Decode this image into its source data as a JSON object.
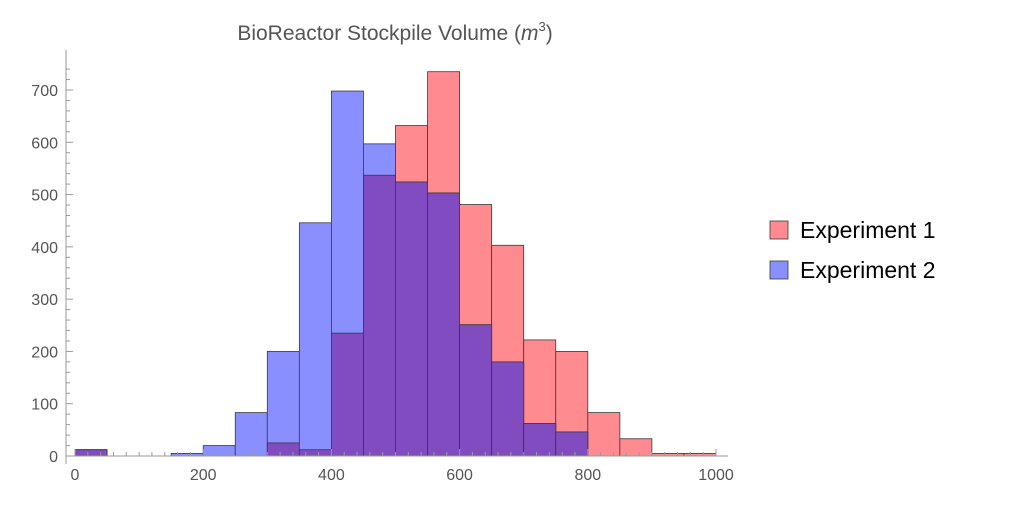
{
  "chart_data": {
    "type": "bar",
    "subtype": "histogram",
    "title": "BioReactor Stockpile Volume (m³)",
    "title_main": "BioReactor Stockpile Volume (",
    "title_m": "m",
    "title_sup": "3",
    "title_close": ")",
    "xlim": [
      0,
      1000
    ],
    "ylim": [
      0,
      750
    ],
    "x_ticks": [
      0,
      200,
      400,
      600,
      800,
      1000
    ],
    "y_ticks": [
      0,
      100,
      200,
      300,
      400,
      500,
      600,
      700
    ],
    "x_tick_labels": [
      "0",
      "200",
      "400",
      "600",
      "800",
      "1000"
    ],
    "y_tick_labels": [
      "0",
      "100",
      "200",
      "300",
      "400",
      "500",
      "600",
      "700"
    ],
    "bin_width": 50,
    "bins": [
      0,
      50,
      100,
      150,
      200,
      250,
      300,
      350,
      400,
      450,
      500,
      550,
      600,
      650,
      700,
      750,
      800,
      850,
      900,
      950
    ],
    "series": [
      {
        "name": "Experiment 1",
        "color": "#ff8a8f",
        "values": [
          12,
          0,
          0,
          0,
          0,
          0,
          25,
          12,
          235,
          537,
          632,
          735,
          481,
          403,
          222,
          200,
          83,
          33,
          5,
          5
        ]
      },
      {
        "name": "Experiment 2",
        "color": "#8a8fff",
        "values": [
          12,
          0,
          0,
          5,
          20,
          83,
          200,
          446,
          698,
          597,
          524,
          503,
          251,
          180,
          62,
          46,
          0,
          0,
          0,
          0
        ]
      }
    ],
    "overlap_color": "#804cc0",
    "legend": [
      "Experiment 1",
      "Experiment 2"
    ],
    "legend_position": "right",
    "grid": false
  }
}
